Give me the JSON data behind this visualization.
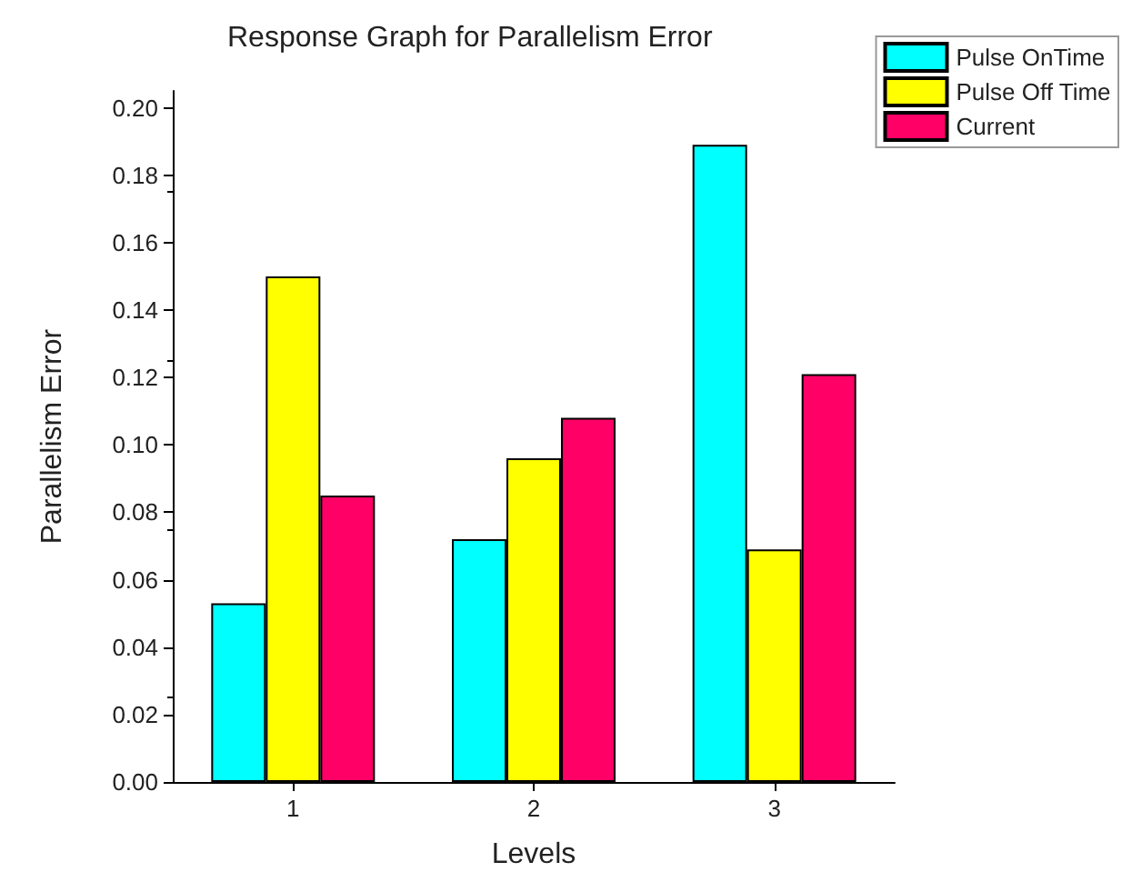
{
  "chart_data": {
    "type": "bar",
    "title": "Response Graph for Parallelism Error",
    "xlabel": "Levels",
    "ylabel": "Parallelism Error",
    "categories": [
      "1",
      "2",
      "3"
    ],
    "series": [
      {
        "name": "Pulse OnTime",
        "color": "#00ffff",
        "values": [
          0.053,
          0.072,
          0.189
        ]
      },
      {
        "name": "Pulse Off Time",
        "color": "#ffff00",
        "values": [
          0.15,
          0.096,
          0.069
        ]
      },
      {
        "name": "Current",
        "color": "#ff0066",
        "values": [
          0.085,
          0.108,
          0.121
        ]
      }
    ],
    "ylim": [
      0,
      0.205
    ],
    "yticks": [
      {
        "value": 0,
        "label": "0.00"
      },
      {
        "value": 0.02,
        "label": "0.02"
      },
      {
        "value": 0.04,
        "label": "0.04"
      },
      {
        "value": 0.06,
        "label": "0.06"
      },
      {
        "value": 0.08,
        "label": "0.08"
      },
      {
        "value": 0.1,
        "label": "0.10"
      },
      {
        "value": 0.12,
        "label": "0.12"
      },
      {
        "value": 0.14,
        "label": "0.14"
      },
      {
        "value": 0.16,
        "label": "0.16"
      },
      {
        "value": 0.18,
        "label": "0.18"
      },
      {
        "value": 0.2,
        "label": "0.20"
      }
    ],
    "grid": false,
    "legend": "top right"
  }
}
